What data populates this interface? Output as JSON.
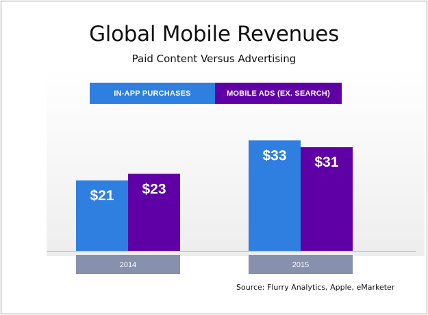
{
  "header": {
    "title": "Global Mobile Revenues",
    "subtitle": "Paid Content Versus Advertising"
  },
  "colors": {
    "in_app": "#2f7fe0",
    "mobile_ads": "#5f00a6",
    "category_band": "#8791ad"
  },
  "chart_data": {
    "type": "bar",
    "title": "Global Mobile Revenues",
    "subtitle": "Paid Content Versus Advertising",
    "categories": [
      "2014",
      "2015"
    ],
    "series": [
      {
        "name": "IN-APP PURCHASES",
        "values": [
          21,
          33
        ],
        "labels": [
          "$21",
          "$33"
        ],
        "color": "#2f7fe0"
      },
      {
        "name": "MOBILE ADS (EX. SEARCH)",
        "values": [
          23,
          31
        ],
        "labels": [
          "$23",
          "$31"
        ],
        "color": "#5f00a6"
      }
    ],
    "ylim": [
      0,
      39
    ],
    "grid": false,
    "legend_position": "top"
  },
  "footer": {
    "source": "Source: Flurry Analytics, Apple, eMarketer"
  }
}
